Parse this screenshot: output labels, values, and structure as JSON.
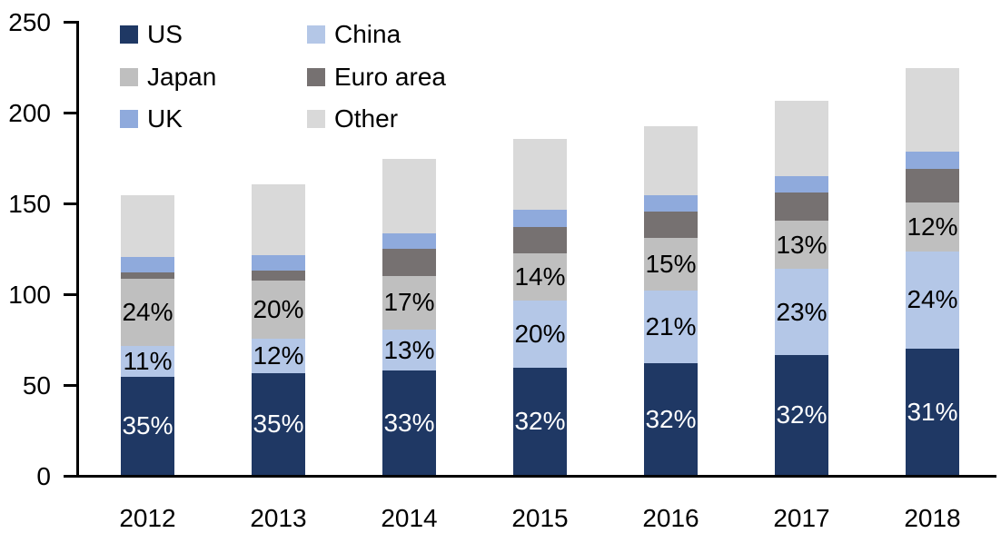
{
  "chart_data": {
    "type": "bar",
    "subtype": "stacked-vertical",
    "title": "",
    "xlabel": "",
    "ylabel": "",
    "categories": [
      "2012",
      "2013",
      "2014",
      "2015",
      "2016",
      "2017",
      "2018"
    ],
    "totals": [
      154,
      160,
      174,
      185,
      192,
      206,
      224
    ],
    "series": [
      {
        "name": "US",
        "color": "#1F3864",
        "values": [
          53.9,
          56.0,
          57.4,
          59.2,
          61.4,
          65.9,
          69.4
        ],
        "segment_labels": [
          "35%",
          "35%",
          "33%",
          "32%",
          "32%",
          "32%",
          "31%"
        ],
        "label_color": "#FFFFFF"
      },
      {
        "name": "China",
        "color": "#B4C7E7",
        "values": [
          16.9,
          19.2,
          22.6,
          37.0,
          40.3,
          47.4,
          53.8
        ],
        "segment_labels": [
          "11%",
          "12%",
          "13%",
          "20%",
          "21%",
          "23%",
          "24%"
        ],
        "label_color": "#000000"
      },
      {
        "name": "Japan",
        "color": "#BFBFBF",
        "values": [
          37.0,
          32.0,
          29.6,
          25.9,
          28.8,
          26.8,
          26.9
        ],
        "segment_labels": [
          "24%",
          "20%",
          "17%",
          "14%",
          "15%",
          "13%",
          "12%"
        ],
        "label_color": "#000000"
      },
      {
        "name": "Euro area",
        "color": "#767171",
        "values": [
          3.7,
          5.2,
          15.0,
          14.2,
          14.7,
          15.5,
          18.3
        ],
        "segment_labels": [
          null,
          null,
          null,
          null,
          null,
          null,
          null
        ],
        "label_color": "#000000"
      },
      {
        "name": "UK",
        "color": "#8FAADC",
        "values": [
          8.4,
          8.5,
          8.3,
          9.5,
          8.7,
          8.9,
          9.7
        ],
        "segment_labels": [
          null,
          null,
          null,
          null,
          null,
          null,
          null
        ],
        "label_color": "#000000"
      },
      {
        "name": "Other",
        "color": "#D9D9D9",
        "values": [
          34.1,
          39.1,
          41.1,
          39.2,
          38.1,
          41.5,
          45.9
        ],
        "segment_labels": [
          null,
          null,
          null,
          null,
          null,
          null,
          null
        ],
        "label_color": "#000000"
      }
    ],
    "yaxis": {
      "min": 0,
      "max": 250,
      "tick_step": 50,
      "tick_labels": [
        "0",
        "50",
        "100",
        "150",
        "200",
        "250"
      ],
      "grid": false
    },
    "legend": {
      "position": "top-left-inside",
      "columns": 2,
      "entries": [
        {
          "label": "US",
          "color": "#1F3864"
        },
        {
          "label": "China",
          "color": "#B4C7E7"
        },
        {
          "label": "Japan",
          "color": "#BFBFBF"
        },
        {
          "label": "Euro area",
          "color": "#767171"
        },
        {
          "label": "UK",
          "color": "#8FAADC"
        },
        {
          "label": "Other",
          "color": "#D9D9D9"
        }
      ]
    },
    "axis_color": "#000000",
    "text_color": "#000000"
  }
}
